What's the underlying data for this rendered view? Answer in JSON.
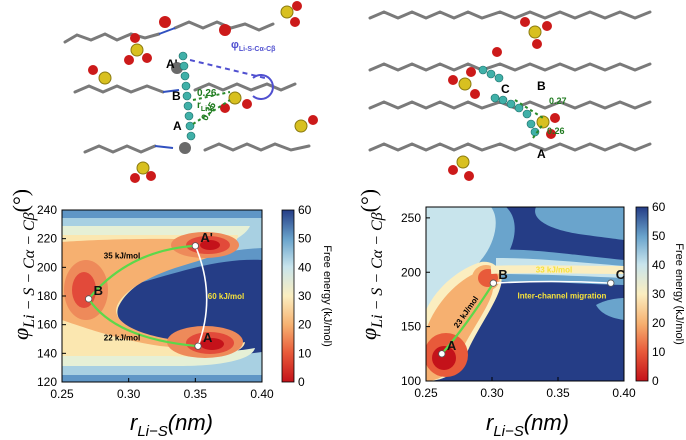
{
  "molecular_views": {
    "left": {
      "labels": [
        "A'",
        "B",
        "A"
      ],
      "distance_labels": [
        "0.26",
        "0.35"
      ],
      "distance_name": "r",
      "distance_name_sub": "Li-S",
      "angle_name": "φ",
      "angle_name_sub": "Li-S-Cα-Cβ"
    },
    "right": {
      "labels": [
        "C",
        "B",
        "A"
      ],
      "distance_labels": [
        "0.27",
        "0.26"
      ]
    }
  },
  "chart_data": [
    {
      "type": "heatmap",
      "title": "",
      "xlabel_main": "r",
      "xlabel_sub": "Li−S",
      "xlabel_unit": "(nm)",
      "ylabel_main": "φ",
      "ylabel_sub": "Li − S − Cα − Cβ",
      "ylabel_unit": "(°)",
      "xlim": [
        0.25,
        0.4
      ],
      "ylim": [
        120,
        240
      ],
      "x_ticks": [
        "0.25",
        "0.30",
        "0.35",
        "0.40"
      ],
      "y_ticks": [
        "120",
        "140",
        "160",
        "180",
        "200",
        "220",
        "240"
      ],
      "colorbar": {
        "label": "Free energy (kJ/mol)",
        "range": [
          0,
          60
        ],
        "ticks": [
          "0",
          "10",
          "20",
          "30",
          "40",
          "50",
          "60"
        ]
      },
      "minima": [
        {
          "label": "A'",
          "x": 0.35,
          "y": 215
        },
        {
          "label": "B",
          "x": 0.27,
          "y": 178
        },
        {
          "label": "A",
          "x": 0.352,
          "y": 145
        }
      ],
      "path_annotations": [
        {
          "text": "35 kJ/mol",
          "x": 0.295,
          "y": 206
        },
        {
          "text": "22 kJ/mol",
          "x": 0.295,
          "y": 149
        },
        {
          "text": "60 kJ/mol",
          "x": 0.373,
          "y": 178
        }
      ]
    },
    {
      "type": "heatmap",
      "title": "",
      "xlabel_main": "r",
      "xlabel_sub": "Li−S",
      "xlabel_unit": "(nm)",
      "ylabel_main": "φ",
      "ylabel_sub": "Li − S − Cα − Cβ",
      "ylabel_unit": "(°)",
      "xlim": [
        0.25,
        0.4
      ],
      "ylim": [
        100,
        260
      ],
      "x_ticks": [
        "0.25",
        "0.30",
        "0.35",
        "0.40"
      ],
      "y_ticks": [
        "100",
        "150",
        "200",
        "250"
      ],
      "colorbar": {
        "label": "Free energy (kJ/mol)",
        "range": [
          0,
          60
        ],
        "ticks": [
          "0",
          "10",
          "20",
          "30",
          "40",
          "50",
          "60"
        ]
      },
      "minima": [
        {
          "label": "A",
          "x": 0.262,
          "y": 125
        },
        {
          "label": "B",
          "x": 0.301,
          "y": 190
        },
        {
          "label": "C",
          "x": 0.39,
          "y": 190
        }
      ],
      "path_annotations": [
        {
          "text": "23 kJ/mol",
          "x": 0.282,
          "y": 162
        },
        {
          "text": "33 kJ/mol",
          "x": 0.347,
          "y": 200
        },
        {
          "text": "Inter-channel migration",
          "x": 0.353,
          "y": 176
        }
      ]
    }
  ]
}
